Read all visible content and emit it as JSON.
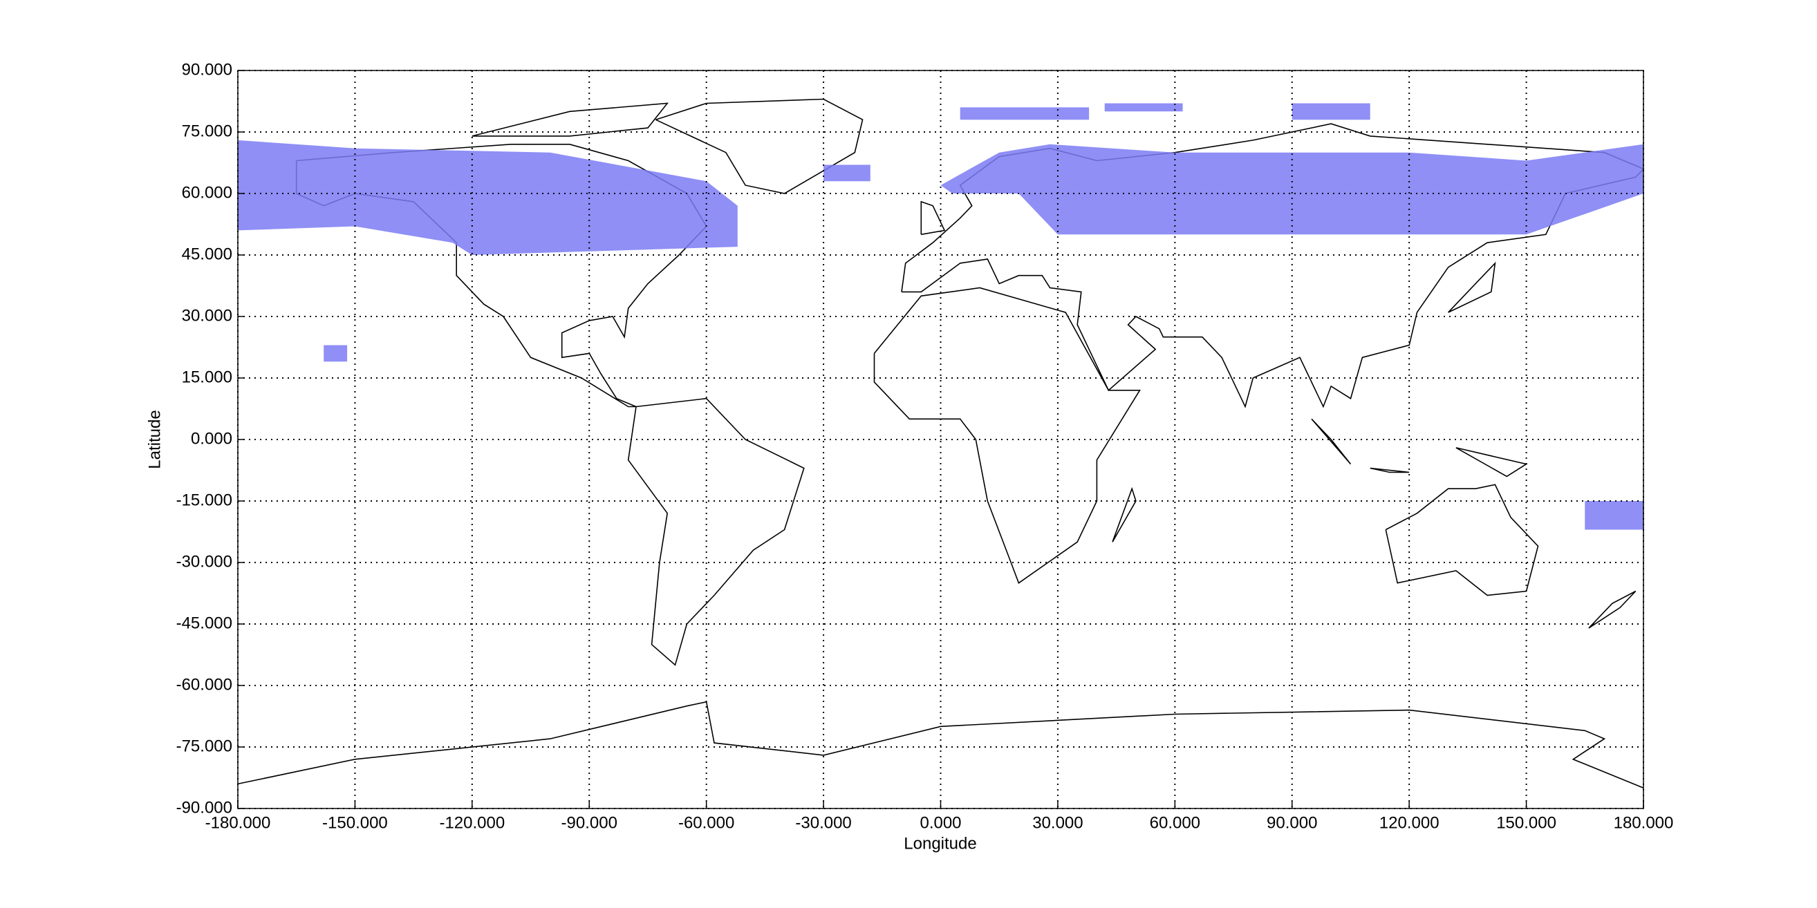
{
  "chart_data": {
    "type": "map",
    "xlabel": "Longitude",
    "ylabel": "Latitude",
    "xlim": [
      -180,
      180
    ],
    "ylim": [
      -90,
      90
    ],
    "xticks": [
      {
        "value": -180,
        "label": "-180.000"
      },
      {
        "value": -150,
        "label": "-150.000"
      },
      {
        "value": -120,
        "label": "-120.000"
      },
      {
        "value": -90,
        "label": "-90.000"
      },
      {
        "value": -60,
        "label": "-60.000"
      },
      {
        "value": -30,
        "label": "-30.000"
      },
      {
        "value": 0,
        "label": "0.000"
      },
      {
        "value": 30,
        "label": "30.000"
      },
      {
        "value": 60,
        "label": "60.000"
      },
      {
        "value": 90,
        "label": "90.000"
      },
      {
        "value": 120,
        "label": "120.000"
      },
      {
        "value": 150,
        "label": "150.000"
      },
      {
        "value": 180,
        "label": "180.000"
      }
    ],
    "yticks": [
      {
        "value": -90,
        "label": "-90.000"
      },
      {
        "value": -75,
        "label": "-75.000"
      },
      {
        "value": -60,
        "label": "-60.000"
      },
      {
        "value": -45,
        "label": "-45.000"
      },
      {
        "value": -30,
        "label": "-30.000"
      },
      {
        "value": -15,
        "label": "-15.000"
      },
      {
        "value": 0,
        "label": "0.000"
      },
      {
        "value": 15,
        "label": "15.000"
      },
      {
        "value": 30,
        "label": "30.000"
      },
      {
        "value": 45,
        "label": "45.000"
      },
      {
        "value": 60,
        "label": "60.000"
      },
      {
        "value": 75,
        "label": "75.000"
      },
      {
        "value": 90,
        "label": "90.000"
      }
    ],
    "grid": true,
    "color": "#7b7bf5",
    "regions": [
      {
        "x": [
          -180,
          -150,
          -100,
          -60,
          -52,
          -52,
          -120,
          -125,
          -150,
          -180
        ],
        "y": [
          73,
          71,
          70,
          63,
          57,
          47,
          45,
          48,
          52,
          51
        ]
      },
      {
        "x": [
          0,
          15,
          28,
          60,
          90,
          120,
          150,
          180,
          180,
          165,
          150,
          120,
          30,
          20,
          3
        ],
        "y": [
          62,
          70,
          72,
          70,
          70,
          70,
          68,
          72,
          60,
          55,
          50,
          50,
          50,
          60,
          60
        ]
      },
      {
        "x": [
          5,
          38,
          38,
          5
        ],
        "y": [
          81,
          81,
          78,
          78
        ]
      },
      {
        "x": [
          42,
          62,
          62,
          42
        ],
        "y": [
          82,
          82,
          80,
          80
        ]
      },
      {
        "x": [
          90,
          110,
          110,
          90
        ],
        "y": [
          82,
          82,
          78,
          78
        ]
      },
      {
        "x": [
          -158,
          -152,
          -152,
          -158
        ],
        "y": [
          23,
          23,
          19,
          19
        ]
      },
      {
        "x": [
          -30,
          -18,
          -18,
          -30
        ],
        "y": [
          67,
          67,
          63,
          63
        ]
      },
      {
        "x": [
          165,
          180,
          180,
          165
        ],
        "y": [
          -15,
          -15,
          -22,
          -22
        ]
      }
    ]
  }
}
